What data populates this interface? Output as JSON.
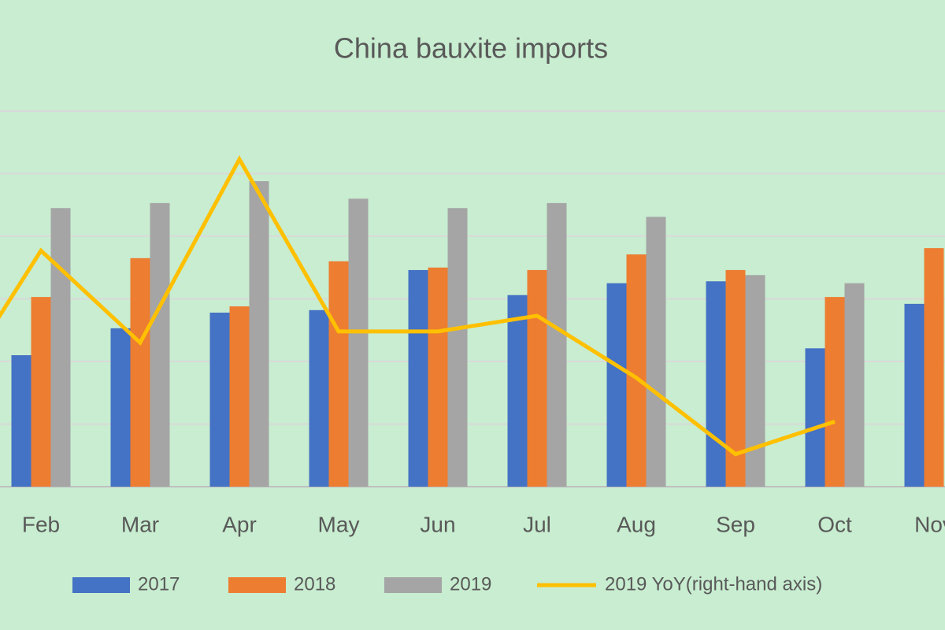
{
  "chart_data": {
    "type": "bar",
    "title": "China bauxite imports",
    "categories": [
      null,
      "Feb",
      "Mar",
      "Apr",
      "May",
      "Jun",
      "Jul",
      "Aug",
      "Sep",
      "Oct",
      "Nov"
    ],
    "series": [
      {
        "name": "2017",
        "color": "#4472c4",
        "values": [
          null,
          2.1,
          2.53,
          2.78,
          2.82,
          3.46,
          3.06,
          3.25,
          3.28,
          2.21,
          2.92
        ]
      },
      {
        "name": "2018",
        "color": "#ed7d31",
        "values": [
          null,
          3.03,
          3.65,
          2.88,
          3.6,
          3.5,
          3.46,
          3.71,
          3.46,
          3.03,
          3.81
        ]
      },
      {
        "name": "2019",
        "color": "#a5a5a5",
        "values": [
          null,
          4.45,
          4.53,
          4.88,
          4.6,
          4.45,
          4.53,
          4.31,
          3.38,
          3.25,
          null
        ]
      },
      {
        "name": "2019 YoY(right-hand axis)",
        "color": "#ffc000",
        "type": "line",
        "axis": "y2",
        "values": [
          1.27,
          3.77,
          2.3,
          5.23,
          2.48,
          2.48,
          2.73,
          1.74,
          0.52,
          1.04,
          null
        ]
      }
    ],
    "ylim": [
      0,
      6
    ],
    "yticks": [
      0,
      1,
      2,
      3,
      4,
      5,
      6
    ],
    "y2lim": [
      0,
      6
    ],
    "grid": true,
    "legend": "bottom"
  }
}
